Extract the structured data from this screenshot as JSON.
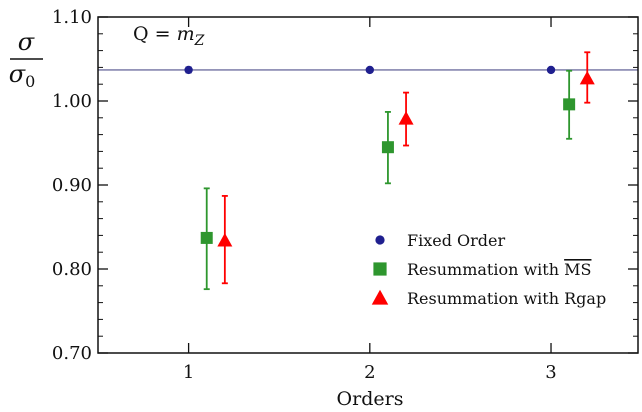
{
  "chart_data": {
    "type": "scatter",
    "xlabel": "Orders",
    "ylabel": {
      "numerator": "σ",
      "denominator": "σ",
      "denominator_sub": "0"
    },
    "annotation": {
      "left": "Q = ",
      "var": "m",
      "sub": "Z"
    },
    "xlim": [
      0.5,
      3.48
    ],
    "ylim": [
      0.7,
      1.1
    ],
    "x_ticks": [
      "1",
      "2",
      "3"
    ],
    "y_ticks": [
      "0.70",
      "0.80",
      "0.90",
      "1.00",
      "1.10"
    ],
    "reference_line": {
      "y": 1.037,
      "color": "#7070a0"
    },
    "grid": false,
    "legend_position": "bottom-right",
    "series": [
      {
        "name": "Fixed Order",
        "marker": "circle",
        "color": "#1f1f8f",
        "points": [
          {
            "x": 1.0,
            "y": 1.037,
            "err_low": 0.003,
            "err_high": 0.003
          },
          {
            "x": 2.0,
            "y": 1.037,
            "err_low": 0.0008,
            "err_high": 0.0008
          },
          {
            "x": 3.0,
            "y": 1.037,
            "err_low": 0.0005,
            "err_high": 0.0005
          }
        ]
      },
      {
        "name": "Resummation with MS",
        "name_main": "Resummation with ",
        "name_overlined": "MS",
        "marker": "square",
        "color": "#2e962e",
        "points": [
          {
            "x": 1.1,
            "y": 0.837,
            "err_low": 0.061,
            "err_high": 0.059
          },
          {
            "x": 2.1,
            "y": 0.945,
            "err_low": 0.043,
            "err_high": 0.042
          },
          {
            "x": 3.1,
            "y": 0.996,
            "err_low": 0.041,
            "err_high": 0.04
          }
        ]
      },
      {
        "name": "Resummation with Rgap",
        "marker": "triangle",
        "color": "#ff0000",
        "points": [
          {
            "x": 1.2,
            "y": 0.834,
            "err_low": 0.051,
            "err_high": 0.053
          },
          {
            "x": 2.2,
            "y": 0.979,
            "err_low": 0.032,
            "err_high": 0.031
          },
          {
            "x": 3.2,
            "y": 1.027,
            "err_low": 0.029,
            "err_high": 0.031
          }
        ]
      }
    ]
  }
}
